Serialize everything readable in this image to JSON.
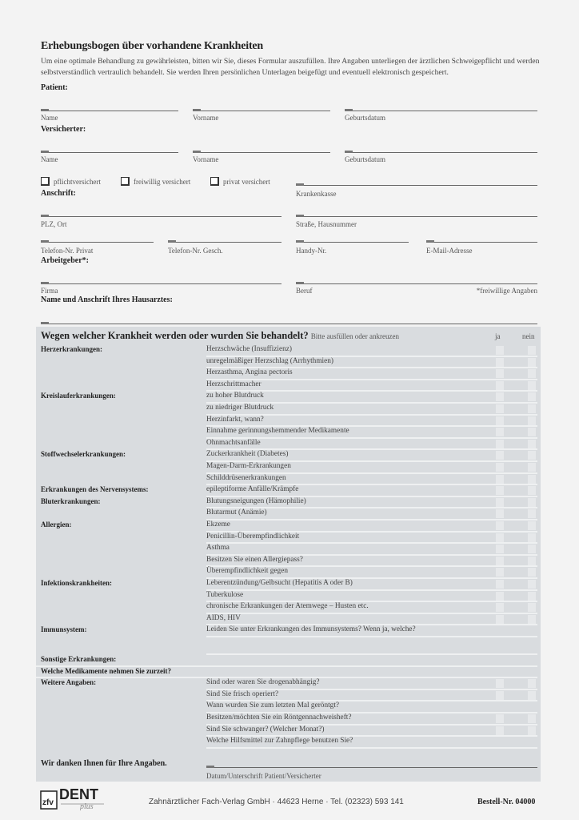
{
  "title": "Erhebungsbogen über vorhandene Krankheiten",
  "intro": "Um eine optimale Behandlung zu gewährleisten, bitten wir Sie, dieses Formular auszufüllen. Ihre Angaben unterliegen der ärztlichen Schweigepflicht und werden selbstverständlich vertraulich behandelt. Sie werden Ihren persönlichen Unterlagen beigefügt und eventuell elektronisch gespeichert.",
  "patient": {
    "heading": "Patient:",
    "name": "Name",
    "vorname": "Vorname",
    "geburtsdatum": "Geburtsdatum"
  },
  "versicherter": {
    "heading": "Versicherter:",
    "name": "Name",
    "vorname": "Vorname",
    "geburtsdatum": "Geburtsdatum"
  },
  "insurance_options": [
    "pflichtversichert",
    "freiwillig versichert",
    "privat versichert"
  ],
  "krankenkasse": "Krankenkasse",
  "anschrift": {
    "heading": "Anschrift:",
    "plz_ort": "PLZ, Ort",
    "strasse": "Straße, Hausnummer",
    "tel_privat": "Telefon-Nr. Privat",
    "tel_gesch": "Telefon-Nr. Gesch.",
    "handy": "Handy-Nr.",
    "email": "E-Mail-Adresse"
  },
  "arbeitgeber": {
    "heading": "Arbeitgeber*:",
    "firma": "Firma",
    "beruf": "Beruf",
    "note": "*freiwillige Angaben"
  },
  "hausarzt": {
    "heading": "Name und Anschrift Ihres Hausarztes:"
  },
  "questionnaire": {
    "heading": "Wegen welcher Krankheit werden oder wurden Sie behandelt?",
    "hint": "Bitte ausfüllen oder ankreuzen",
    "ja": "ja",
    "nein": "nein",
    "groups": [
      {
        "label": "Herzerkrankungen:",
        "items": [
          {
            "text": "Herzschwäche (Insuffizienz)",
            "check": true
          },
          {
            "text": "unregelmäßiger Herzschlag (Arrhythmien)",
            "check": true
          },
          {
            "text": "Herzasthma, Angina pectoris",
            "check": true
          },
          {
            "text": "Herzschrittmacher",
            "check": true
          }
        ]
      },
      {
        "label": "Kreislauferkrankungen:",
        "items": [
          {
            "text": "zu hoher Blutdruck",
            "check": true
          },
          {
            "text": "zu niedriger Blutdruck",
            "check": true
          },
          {
            "text": "Herzinfarkt, wann?",
            "check": true
          },
          {
            "text": "Einnahme gerinnungshemmender Medikamente",
            "check": true
          },
          {
            "text": "Ohnmachtsanfälle",
            "check": true
          }
        ]
      },
      {
        "label": "Stoffwechselerkrankungen:",
        "items": [
          {
            "text": "Zuckerkrankheit (Diabetes)",
            "check": true
          },
          {
            "text": "Magen-Darm-Erkrankungen",
            "check": true
          },
          {
            "text": "Schilddrüsenerkrankungen",
            "check": true
          }
        ]
      },
      {
        "label": "Erkrankungen des Nervensystems:",
        "items": [
          {
            "text": "epileptiforme Anfälle/Krämpfe",
            "check": true
          }
        ]
      },
      {
        "label": "Bluterkrankungen:",
        "items": [
          {
            "text": "Blutungsneigungen (Hämophilie)",
            "check": true
          },
          {
            "text": "Blutarmut (Anämie)",
            "check": true
          }
        ]
      },
      {
        "label": "Allergien:",
        "items": [
          {
            "text": "Ekzeme",
            "check": true
          },
          {
            "text": "Penicillin-Überempfindlichkeit",
            "check": true
          },
          {
            "text": "Asthma",
            "check": true
          },
          {
            "text": "Besitzen Sie einen Allergiepass?",
            "check": true
          },
          {
            "text": "Überempfindlichkeit gegen",
            "check": true
          }
        ]
      },
      {
        "label": "Infektionskrankheiten:",
        "items": [
          {
            "text": "Leberentzündung/Gelbsucht (Hepatitis A oder B)",
            "check": true
          },
          {
            "text": "Tuberkulose",
            "check": true
          },
          {
            "text": "chronische Erkrankungen der Atemwege – Husten etc.",
            "check": true
          },
          {
            "text": "AIDS, HIV",
            "check": true
          }
        ]
      },
      {
        "label": "Immunsystem:",
        "items": [
          {
            "text": "Leiden Sie unter Erkrankungen des Immunsystems? Wenn ja, welche?",
            "check": false
          },
          {
            "text": "",
            "check": false,
            "tall": true
          }
        ]
      },
      {
        "label": "Sonstige Erkrankungen:",
        "full": true,
        "items": [
          {
            "text": "",
            "check": false
          }
        ]
      },
      {
        "label": "Welche Medikamente nehmen Sie zurzeit?",
        "full": true,
        "items": [
          {
            "text": "",
            "check": false
          }
        ]
      },
      {
        "label": "Weitere Angaben:",
        "items": [
          {
            "text": "Sind oder waren Sie drogenabhängig?",
            "check": true
          },
          {
            "text": "Sind Sie frisch operiert?",
            "check": true
          },
          {
            "text": "Wann wurden Sie zum letzten Mal geröntgt?",
            "check": false
          },
          {
            "text": "Besitzen/möchten Sie ein Röntgennachweisheft?",
            "check": true
          },
          {
            "text": "Sind Sie schwanger? (Welcher Monat?)",
            "check": true
          },
          {
            "text": "Welche Hilfsmittel zur Zahnpflege benutzen Sie?",
            "check": false
          }
        ]
      }
    ],
    "thanks": "Wir danken Ihnen für Ihre Angaben.",
    "signature": "Datum/Unterschrift Patient/Versicherter"
  },
  "footer": {
    "logo": "zfv DENT plus",
    "publisher": "Zahnärztlicher Fach-Verlag GmbH · 44623 Herne ·  Tel. (02323) 593 141",
    "order_no": "Bestell-Nr. 04000"
  }
}
